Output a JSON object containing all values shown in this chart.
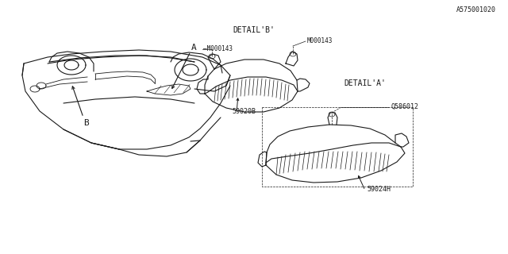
{
  "bg_color": "#ffffff",
  "line_color": "#1a1a1a",
  "text_color": "#1a1a1a",
  "part_number_A": "59024H",
  "part_number_B": "59020B",
  "fastener_A": "Q586012",
  "fastener_B1": "M000143",
  "fastener_B2": "M000143",
  "diagram_id": "A575001020",
  "label_a": "A",
  "label_b": "B",
  "font_size_parts": 6.0,
  "font_size_detail": 7.0,
  "font_size_id": 6.0,
  "font_size_label": 8.0
}
